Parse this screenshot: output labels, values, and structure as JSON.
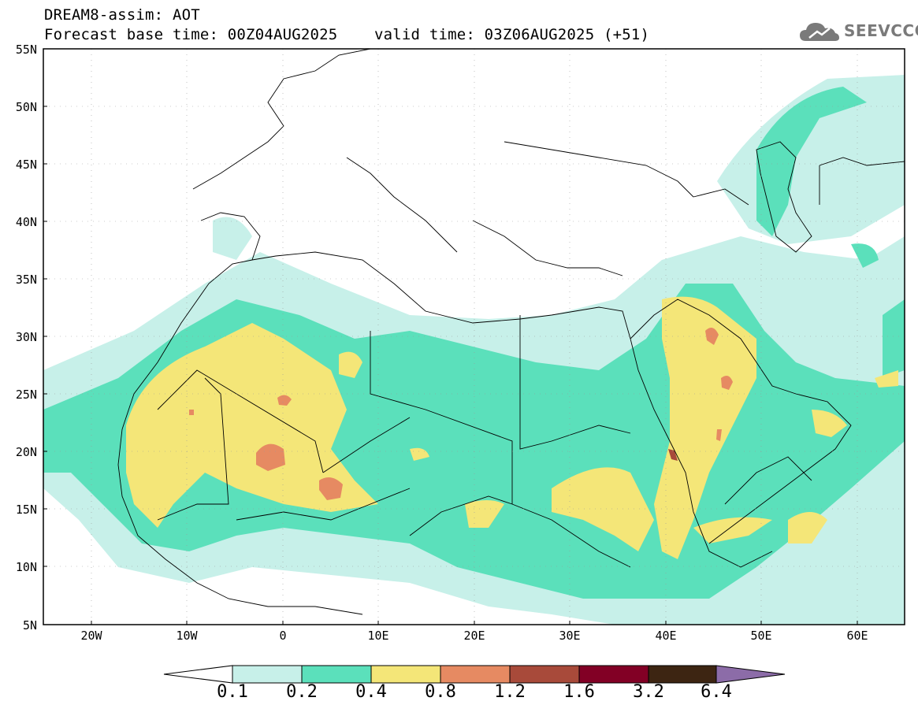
{
  "header": {
    "title_line1": "DREAM8-assim: AOT",
    "title_line2": "Forecast base time: 00Z04AUG2025    valid time: 03Z06AUG2025 (+51)"
  },
  "logo": {
    "text": "SEEVCCC",
    "icon": "cloud-icon"
  },
  "map": {
    "lat_labels": [
      "55N",
      "50N",
      "45N",
      "40N",
      "35N",
      "30N",
      "25N",
      "20N",
      "15N",
      "10N",
      "5N"
    ],
    "lon_labels": [
      "20W",
      "10W",
      "0",
      "10E",
      "20E",
      "30E",
      "40E",
      "50E",
      "60E"
    ]
  },
  "colorbar": {
    "labels": [
      "0.1",
      "0.2",
      "0.4",
      "0.8",
      "1.2",
      "1.6",
      "3.2",
      "6.4"
    ],
    "colors": [
      "#ffffff",
      "#c7f0e9",
      "#5be0bb",
      "#f4e678",
      "#e68a62",
      "#a84a3a",
      "#820025",
      "#3d2512",
      "#8c6ca8"
    ]
  }
}
